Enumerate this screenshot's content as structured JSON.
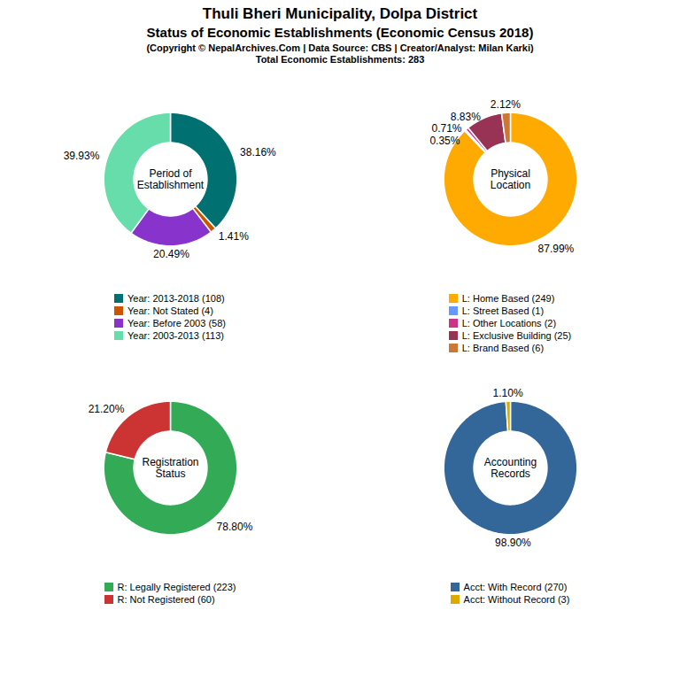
{
  "title": "Thuli Bheri Municipality, Dolpa District",
  "subtitle": "Status of Economic Establishments (Economic Census 2018)",
  "annotations": [
    "(Copyright © NepalArchives.Com | Data Source: CBS | Creator/Analyst: Milan Karki)",
    "Total Economic Establishments: 283"
  ],
  "chart_data": [
    {
      "type": "pie",
      "title": "Period of\nEstablishment",
      "categories": [
        "Year: 2013-2018 (108)",
        "Year: Not Stated (4)",
        "Year: Before 2003 (58)",
        "Year: 2003-2013 (113)"
      ],
      "values": [
        38.16,
        1.41,
        20.49,
        39.93
      ],
      "value_labels": [
        "38.16%",
        "1.41%",
        "20.49%",
        "39.93%"
      ],
      "colors": [
        "#007070",
        "#cc5500",
        "#8833cc",
        "#66ddaa"
      ],
      "data_labels": true,
      "legend": "bottom"
    },
    {
      "type": "pie",
      "title": "Physical\nLocation",
      "categories": [
        "L: Home Based (249)",
        "L: Street Based (1)",
        "L: Other Locations (2)",
        "L: Exclusive Building (25)",
        "L: Brand Based (6)"
      ],
      "values": [
        87.99,
        0.35,
        0.71,
        8.83,
        2.12
      ],
      "value_labels": [
        "87.99%",
        "0.35%",
        "0.71%",
        "8.83%",
        "2.12%"
      ],
      "colors": [
        "#ffaa00",
        "#6699ff",
        "#cc3388",
        "#993355",
        "#cc7733"
      ],
      "data_labels": true,
      "legend": "bottom"
    },
    {
      "type": "pie",
      "title": "Registration\nStatus",
      "categories": [
        "R: Legally Registered (223)",
        "R: Not Registered (60)"
      ],
      "values": [
        78.8,
        21.2
      ],
      "value_labels": [
        "78.80%",
        "21.20%"
      ],
      "colors": [
        "#33aa55",
        "#cc3333"
      ],
      "data_labels": true,
      "legend": "bottom"
    },
    {
      "type": "pie",
      "title": "Accounting\nRecords",
      "categories": [
        "Acct: With Record (270)",
        "Acct: Without Record (3)"
      ],
      "values": [
        98.9,
        1.1
      ],
      "value_labels": [
        "98.90%",
        "1.10%"
      ],
      "colors": [
        "#336699",
        "#ddaa00"
      ],
      "data_labels": true,
      "legend": "bottom"
    }
  ]
}
